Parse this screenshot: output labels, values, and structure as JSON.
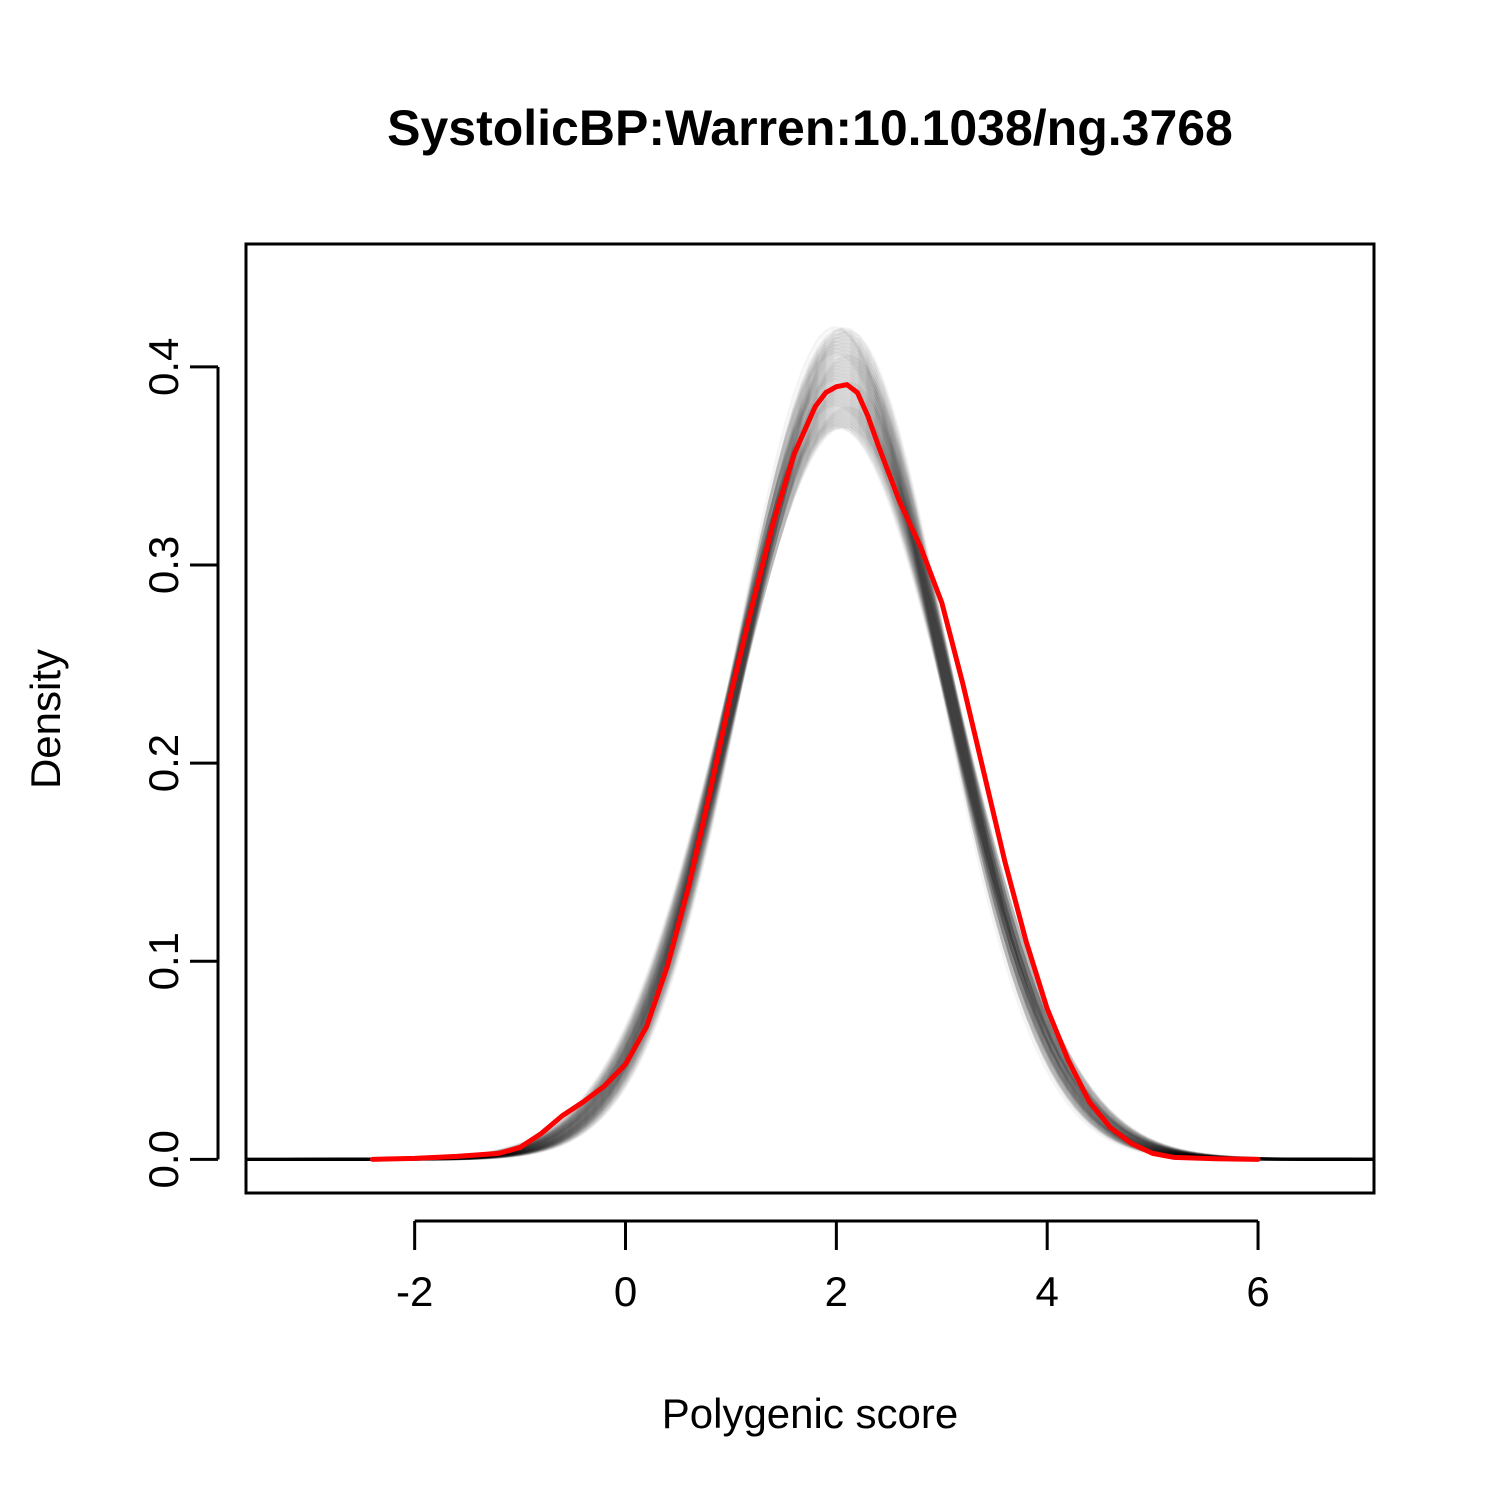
{
  "chart_data": {
    "type": "line",
    "title": "SystolicBP:Warren:10.1038/ng.3768",
    "xlabel": "Polygenic score",
    "ylabel": "Density",
    "xlim": [
      -3.6,
      7.1
    ],
    "ylim": [
      -0.017,
      0.462
    ],
    "x_ticks": [
      -2,
      0,
      2,
      4,
      6
    ],
    "x_tick_labels": [
      "-2",
      "0",
      "2",
      "4",
      "6"
    ],
    "y_ticks": [
      0.0,
      0.1,
      0.2,
      0.3,
      0.4
    ],
    "y_tick_labels": [
      "0.0",
      "0.1",
      "0.2",
      "0.3",
      "0.4"
    ],
    "grid": false,
    "legend": "none",
    "series": [
      {
        "color": "#ff0000",
        "style": "solid",
        "points": [
          [
            -2.4,
            0.0
          ],
          [
            -2.0,
            0.0005
          ],
          [
            -1.6,
            0.0015
          ],
          [
            -1.2,
            0.003
          ],
          [
            -1.0,
            0.006
          ],
          [
            -0.8,
            0.013
          ],
          [
            -0.6,
            0.022
          ],
          [
            -0.4,
            0.029
          ],
          [
            -0.2,
            0.037
          ],
          [
            0.0,
            0.048
          ],
          [
            0.2,
            0.067
          ],
          [
            0.4,
            0.098
          ],
          [
            0.6,
            0.138
          ],
          [
            0.8,
            0.185
          ],
          [
            1.0,
            0.235
          ],
          [
            1.2,
            0.279
          ],
          [
            1.4,
            0.321
          ],
          [
            1.6,
            0.356
          ],
          [
            1.8,
            0.38
          ],
          [
            1.9,
            0.387
          ],
          [
            2.0,
            0.39
          ],
          [
            2.1,
            0.391
          ],
          [
            2.2,
            0.387
          ],
          [
            2.3,
            0.375
          ],
          [
            2.4,
            0.36
          ],
          [
            2.5,
            0.346
          ],
          [
            2.6,
            0.332
          ],
          [
            2.8,
            0.309
          ],
          [
            3.0,
            0.281
          ],
          [
            3.2,
            0.24
          ],
          [
            3.4,
            0.195
          ],
          [
            3.6,
            0.15
          ],
          [
            3.8,
            0.11
          ],
          [
            4.0,
            0.076
          ],
          [
            4.2,
            0.05
          ],
          [
            4.4,
            0.029
          ],
          [
            4.6,
            0.016
          ],
          [
            4.8,
            0.008
          ],
          [
            5.0,
            0.003
          ],
          [
            5.2,
            0.001
          ],
          [
            5.6,
            0.0003
          ],
          [
            6.0,
            0.0
          ]
        ]
      }
    ],
    "bootstrap_curves": {
      "color": "#000000",
      "description_visible": false,
      "x_range": [
        -3.6,
        7.1
      ],
      "center": 2.05,
      "sd_range": [
        0.95,
        1.08
      ],
      "count": 120
    }
  }
}
